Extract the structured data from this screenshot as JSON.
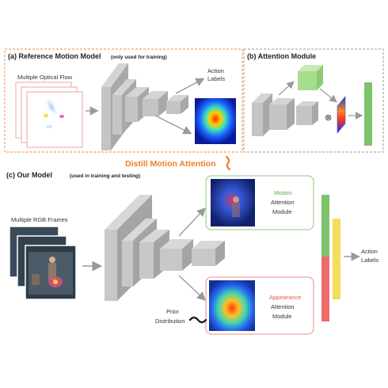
{
  "panel_a": {
    "title": "(a) Reference Motion Model",
    "title_note": "(only used for training)",
    "input_label": "Multiple Optical Flow",
    "output_label_line1": "Action",
    "output_label_line2": "Labels"
  },
  "panel_b": {
    "title": "(b) Attention Module",
    "multiply_symbol": "⊗"
  },
  "distill": {
    "label": "Distill Motion Attention",
    "arrow_symbol": "↯"
  },
  "panel_c": {
    "title": "(c) Our Model",
    "title_note": "(used in training and testing)",
    "input_label": "Multiple RGB Frames",
    "motion_module": {
      "word": "Motion",
      "line2": "Attention",
      "line3": "Module"
    },
    "appearance_module": {
      "word": "Appearance",
      "line2": "Attention",
      "line3": "Module"
    },
    "prior_line1": "Prior",
    "prior_line2": "Distribution",
    "tilde": "~",
    "output_label_line1": "Action",
    "output_label_line2": "Labels"
  },
  "colors": {
    "dashed_orange": "#f2a45c",
    "distill_orange": "#f07f2a",
    "motion_green": "#5cad3a",
    "appearance_red": "#e8574f",
    "bar_green": "#7cc36a",
    "bar_yellow": "#f5dc5a",
    "bar_red": "#ee6b6b",
    "module_green_border": "#a8d49a",
    "module_red_border": "#f2a6a2",
    "block_gray": "#bdbdbd"
  }
}
